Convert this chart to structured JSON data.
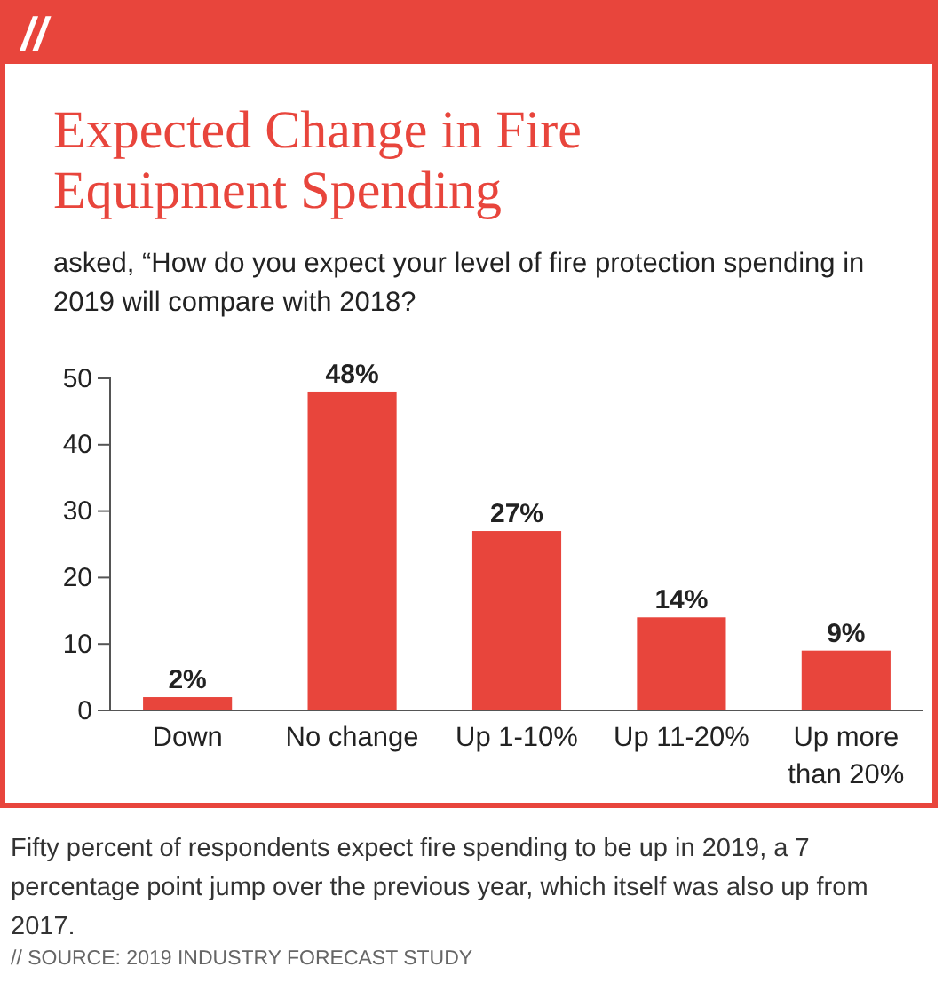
{
  "chart_data": {
    "type": "bar",
    "title": "Expected Change in Fire Equipment Spending",
    "subtitle": "asked, “How do you expect your level of fire protection spending in 2019 will compare with 2018?",
    "categories": [
      "Down",
      "No change",
      "Up 1-10%",
      "Up 11-20%",
      "Up more than 20%"
    ],
    "values": [
      2,
      48,
      27,
      14,
      9
    ],
    "value_labels": [
      "2%",
      "48%",
      "27%",
      "14%",
      "9%"
    ],
    "color": "#e8453c",
    "ylim": [
      0,
      50
    ],
    "yticks": [
      0,
      10,
      20,
      30,
      40,
      50
    ],
    "grid": false,
    "annotations": [
      "//",
      "Fifty percent of respondents expect fire spending to be up in 2019, a 7 percentage point jump over the previous year, which itself was also up from 2017.",
      "// SOURCE: 2019 INDUSTRY FORECAST STUDY"
    ]
  }
}
